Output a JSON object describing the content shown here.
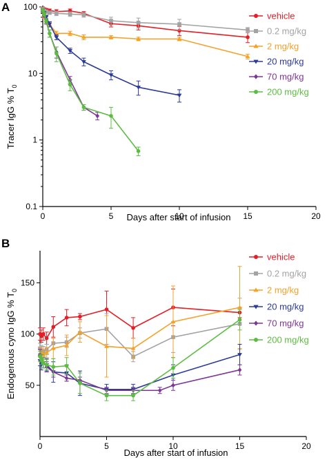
{
  "chart_data": [
    {
      "panel_label": "A",
      "type": "line",
      "xlabel": "Days after start of infusion",
      "ylabel_main": "Tracer IgG % T",
      "ylabel_sub": "0",
      "yscale": "log",
      "xlim": [
        0,
        20
      ],
      "ylim": [
        0.1,
        100
      ],
      "xticks": [
        0,
        5,
        10,
        15,
        20
      ],
      "yticks": [
        0.1,
        1,
        10,
        100
      ],
      "ytick_labels": [
        "0.1",
        "1",
        "10",
        "100"
      ],
      "legend_position": "right",
      "series": [
        {
          "name": "vehicle",
          "color": "#e41e26",
          "marker": "circle",
          "points": [
            [
              0,
              95,
              5
            ],
            [
              0.1,
              92,
              5
            ],
            [
              0.25,
              90,
              5
            ],
            [
              0.5,
              88,
              5
            ],
            [
              1,
              85,
              6
            ],
            [
              2,
              87,
              6
            ],
            [
              3,
              80,
              5
            ],
            [
              5,
              56,
              6
            ],
            [
              7,
              52,
              7
            ],
            [
              10,
              44,
              7
            ],
            [
              15,
              35,
              6
            ]
          ]
        },
        {
          "name": "0.2 mg/kg",
          "color": "#a3a3a3",
          "marker": "square",
          "points": [
            [
              0,
              93,
              5
            ],
            [
              0.1,
              88,
              5
            ],
            [
              0.25,
              85,
              5
            ],
            [
              0.5,
              82,
              5
            ],
            [
              1,
              80,
              6
            ],
            [
              2,
              78,
              6
            ],
            [
              3,
              76,
              6
            ],
            [
              5,
              62,
              8
            ],
            [
              7,
              58,
              10
            ],
            [
              10,
              55,
              10
            ],
            [
              15,
              45,
              4
            ]
          ]
        },
        {
          "name": "2 mg/kg",
          "color": "#f5a128",
          "marker": "triangle-up",
          "points": [
            [
              0,
              88,
              5
            ],
            [
              0.1,
              72,
              5
            ],
            [
              0.25,
              62,
              5
            ],
            [
              0.5,
              55,
              4
            ],
            [
              1,
              40,
              3
            ],
            [
              2,
              40,
              3
            ],
            [
              3,
              35,
              3
            ],
            [
              5,
              35,
              2
            ],
            [
              7,
              33,
              2
            ],
            [
              10,
              33,
              2
            ],
            [
              15,
              18,
              1.5
            ]
          ]
        },
        {
          "name": "20 mg/kg",
          "color": "#2b3a98",
          "marker": "triangle-down",
          "points": [
            [
              0,
              90,
              5
            ],
            [
              0.1,
              80,
              5
            ],
            [
              0.25,
              70,
              5
            ],
            [
              0.5,
              55,
              5
            ],
            [
              1,
              35,
              3
            ],
            [
              2,
              22,
              2
            ],
            [
              3,
              15,
              2
            ],
            [
              5,
              9.5,
              1.5
            ],
            [
              7,
              6.2,
              1.5
            ],
            [
              10,
              4.7,
              1
            ]
          ]
        },
        {
          "name": "70 mg/kg",
          "color": "#7d3596",
          "marker": "diamond",
          "points": [
            [
              0,
              88,
              5
            ],
            [
              0.1,
              75,
              5
            ],
            [
              0.25,
              60,
              5
            ],
            [
              0.5,
              40,
              5
            ],
            [
              1,
              21,
              4
            ],
            [
              2,
              8,
              1
            ],
            [
              3,
              3.1,
              0.3
            ],
            [
              4,
              2.3,
              0.3
            ]
          ]
        },
        {
          "name": "200 mg/kg",
          "color": "#5bbd40",
          "marker": "circle",
          "points": [
            [
              0,
              90,
              5
            ],
            [
              0.1,
              78,
              5
            ],
            [
              0.25,
              62,
              5
            ],
            [
              0.5,
              40,
              5
            ],
            [
              1,
              20,
              5
            ],
            [
              2,
              6.8,
              1.3
            ],
            [
              3,
              3.1,
              0.3
            ],
            [
              5,
              2.3,
              0.8
            ],
            [
              7,
              0.68,
              0.1
            ]
          ]
        }
      ]
    },
    {
      "panel_label": "B",
      "type": "line",
      "xlabel": "Days after start of infusion",
      "ylabel_main": "Endogenous cyno IgG % T",
      "ylabel_sub": "0",
      "yscale": "linear",
      "xlim": [
        0,
        20
      ],
      "ylim": [
        0,
        180
      ],
      "xticks": [
        0,
        5,
        10,
        15,
        20
      ],
      "yticks": [
        50,
        100,
        150
      ],
      "ytick_labels": [
        "50",
        "100",
        "150"
      ],
      "legend_position": "right",
      "series": [
        {
          "name": "vehicle",
          "color": "#e41e26",
          "marker": "circle",
          "points": [
            [
              0,
              100,
              6
            ],
            [
              0.1,
              98,
              6
            ],
            [
              0.25,
              100,
              6
            ],
            [
              0.5,
              96,
              6
            ],
            [
              1,
              107,
              10
            ],
            [
              2,
              116,
              8
            ],
            [
              3,
              117,
              3
            ],
            [
              5,
              124,
              18
            ],
            [
              7,
              106,
              10
            ],
            [
              10,
              126,
              18
            ],
            [
              15,
              121,
              5
            ]
          ]
        },
        {
          "name": "0.2 mg/kg",
          "color": "#a3a3a3",
          "marker": "square",
          "points": [
            [
              0,
              86,
              5
            ],
            [
              0.1,
              84,
              5
            ],
            [
              0.25,
              83,
              5
            ],
            [
              0.5,
              85,
              5
            ],
            [
              1,
              91,
              5
            ],
            [
              2,
              92,
              5
            ],
            [
              3,
              101,
              5
            ],
            [
              5,
              105,
              15
            ],
            [
              7,
              78,
              5
            ],
            [
              10,
              97,
              15
            ],
            [
              15,
              110,
              25
            ]
          ]
        },
        {
          "name": "2 mg/kg",
          "color": "#f5a128",
          "marker": "triangle-up",
          "points": [
            [
              0,
              80,
              5
            ],
            [
              0.1,
              82,
              5
            ],
            [
              0.25,
              80,
              5
            ],
            [
              0.5,
              82,
              5
            ],
            [
              1,
              86,
              10
            ],
            [
              2,
              89,
              10
            ],
            [
              3,
              102,
              10
            ],
            [
              5,
              88,
              30
            ],
            [
              7,
              86,
              10
            ],
            [
              10,
              112,
              35
            ],
            [
              15,
              126,
              40
            ]
          ]
        },
        {
          "name": "20 mg/kg",
          "color": "#2b3a98",
          "marker": "triangle-down",
          "points": [
            [
              0,
              74,
              5
            ],
            [
              0.1,
              70,
              5
            ],
            [
              0.25,
              72,
              5
            ],
            [
              0.5,
              70,
              6
            ],
            [
              1,
              63,
              10
            ],
            [
              2,
              62,
              8
            ],
            [
              3,
              52,
              12
            ],
            [
              5,
              46,
              5
            ],
            [
              7,
              46,
              5
            ],
            [
              10,
              60,
              10
            ],
            [
              15,
              80,
              10
            ]
          ]
        },
        {
          "name": "70 mg/kg",
          "color": "#7d3596",
          "marker": "diamond",
          "points": [
            [
              0,
              80,
              5
            ],
            [
              0.1,
              75,
              5
            ],
            [
              0.25,
              72,
              5
            ],
            [
              0.5,
              68,
              5
            ],
            [
              1,
              63,
              5
            ],
            [
              2,
              57,
              3
            ],
            [
              3,
              55,
              3
            ],
            [
              5,
              45,
              3
            ],
            [
              7,
              45,
              3
            ],
            [
              9,
              45,
              3
            ],
            [
              10,
              50,
              5
            ],
            [
              15,
              65,
              5
            ]
          ]
        },
        {
          "name": "200 mg/kg",
          "color": "#5bbd40",
          "marker": "circle",
          "points": [
            [
              0,
              78,
              5
            ],
            [
              0.1,
              75,
              5
            ],
            [
              0.25,
              72,
              5
            ],
            [
              0.5,
              70,
              5
            ],
            [
              1,
              68,
              8
            ],
            [
              2,
              69,
              8
            ],
            [
              3,
              52,
              10
            ],
            [
              5,
              40,
              5
            ],
            [
              7,
              40,
              5
            ],
            [
              10,
              67,
              10
            ],
            [
              15,
              114,
              10
            ]
          ]
        }
      ]
    }
  ]
}
